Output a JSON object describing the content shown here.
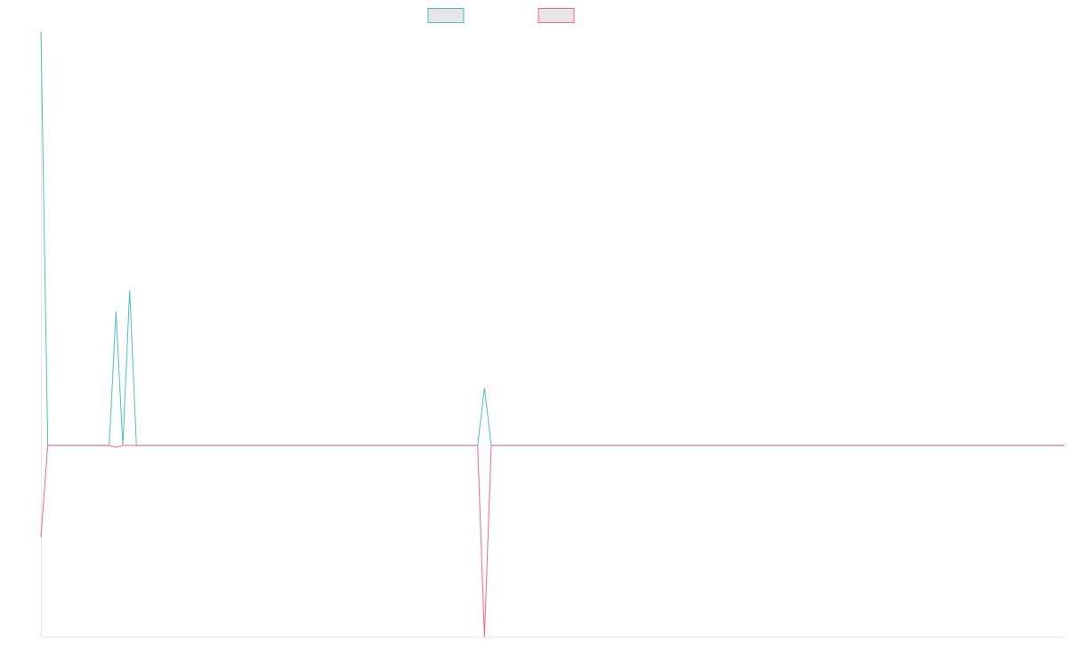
{
  "chart_data": {
    "type": "line",
    "title": "",
    "xlabel": "",
    "ylabel": "",
    "x": [
      0,
      1,
      2,
      3,
      4,
      5,
      6,
      7,
      8,
      9,
      10,
      11,
      12,
      13,
      14,
      15,
      16,
      17,
      18,
      19,
      20,
      21,
      22,
      23,
      24,
      25,
      26,
      27,
      28,
      29,
      30,
      31,
      32,
      33,
      34,
      35,
      36,
      37,
      38,
      39,
      40,
      41,
      42,
      43,
      44,
      45,
      46,
      47,
      48,
      49,
      50,
      51,
      52,
      53,
      54,
      55,
      56,
      57,
      58,
      59,
      60,
      61,
      62,
      63,
      64,
      65,
      66,
      67,
      68,
      69,
      70,
      71,
      72,
      73,
      74,
      75,
      76,
      77,
      78,
      79,
      80,
      81,
      82,
      83,
      84,
      85,
      86,
      87,
      88,
      89,
      90,
      91,
      92,
      93,
      94,
      95,
      96,
      97,
      98,
      99,
      100,
      101,
      102,
      103,
      104,
      105,
      106,
      107,
      108,
      109,
      110,
      111,
      112,
      113,
      114,
      115,
      116,
      117,
      118,
      119,
      120,
      121,
      122,
      123,
      124,
      125,
      126,
      127,
      128,
      129,
      130,
      131,
      132,
      133,
      134,
      135,
      136,
      137,
      138,
      139,
      140,
      141,
      142,
      143,
      144,
      145,
      146,
      147,
      148,
      149,
      150
    ],
    "xlim": [
      0,
      150
    ],
    "ylim": [
      -1,
      2.16
    ],
    "series": [
      {
        "color": "#4bc0c0",
        "points": [
          [
            0,
            2.16
          ],
          [
            1,
            0
          ],
          [
            10,
            0
          ],
          [
            11,
            0.7
          ],
          [
            12,
            0
          ],
          [
            13,
            0.81
          ],
          [
            14,
            0
          ],
          [
            64,
            0
          ],
          [
            65,
            0.3
          ],
          [
            66,
            0
          ],
          [
            150,
            0
          ]
        ]
      },
      {
        "color": "#ff6384",
        "points": [
          [
            0,
            -0.48
          ],
          [
            1,
            0
          ],
          [
            10,
            0
          ],
          [
            11,
            -0.01
          ],
          [
            12,
            0
          ],
          [
            13,
            0
          ],
          [
            14,
            0
          ],
          [
            64,
            0
          ],
          [
            65,
            -1
          ],
          [
            66,
            0
          ],
          [
            150,
            0
          ]
        ]
      }
    ],
    "legend": {
      "position": "top",
      "entries": [
        {
          "color": "#4bc0c0"
        },
        {
          "color": "#ff6384"
        }
      ]
    },
    "grid": false
  }
}
